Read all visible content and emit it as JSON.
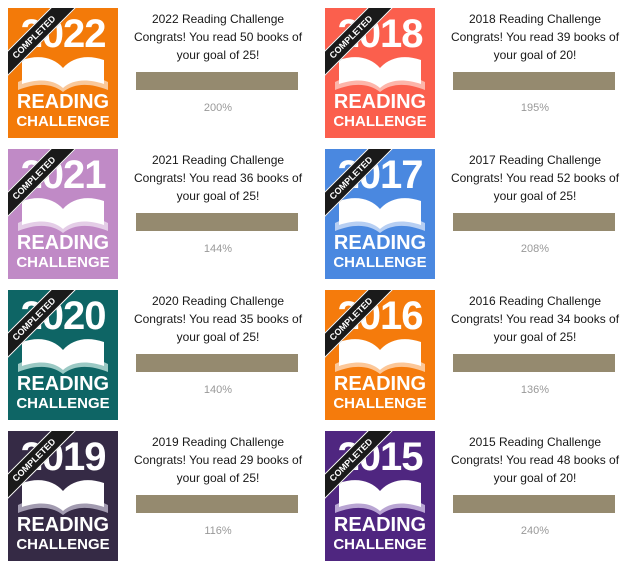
{
  "challenges": [
    {
      "year": "2022",
      "color": "#f37a09",
      "page_color": "#f9c89a",
      "title": "2022 Reading Challenge",
      "line1": "Congrats! You read 50 books of",
      "line2": "your goal of 25!",
      "percent_label": "200%",
      "progress": 1.0
    },
    {
      "year": "2018",
      "color": "#fb5f4d",
      "page_color": "#fdb5aa",
      "title": "2018 Reading Challenge",
      "line1": "Congrats! You read 39 books of",
      "line2": "your goal of 20!",
      "percent_label": "195%",
      "progress": 1.0
    },
    {
      "year": "2021",
      "color": "#c08ac6",
      "page_color": "#e4cde7",
      "title": "2021 Reading Challenge",
      "line1": "Congrats! You read 36 books of",
      "line2": "your goal of 25!",
      "percent_label": "144%",
      "progress": 1.0
    },
    {
      "year": "2017",
      "color": "#4a88e0",
      "page_color": "#b7cff3",
      "title": "2017 Reading Challenge",
      "line1": "Congrats! You read 52 books of",
      "line2": "your goal of 25!",
      "percent_label": "208%",
      "progress": 1.0
    },
    {
      "year": "2020",
      "color": "#0e6565",
      "page_color": "#9bc9c4",
      "title": "2020 Reading Challenge",
      "line1": "Congrats! You read 35 books of",
      "line2": "your goal of 25!",
      "percent_label": "140%",
      "progress": 1.0
    },
    {
      "year": "2016",
      "color": "#f57b0c",
      "page_color": "#fcc798",
      "title": "2016 Reading Challenge",
      "line1": "Congrats! You read 34 books of",
      "line2": "your goal of 25!",
      "percent_label": "136%",
      "progress": 1.0
    },
    {
      "year": "2019",
      "color": "#352a45",
      "page_color": "#a29bb0",
      "title": "2019 Reading Challenge",
      "line1": "Congrats! You read 29 books of",
      "line2": "your goal of 25!",
      "percent_label": "116%",
      "progress": 1.0
    },
    {
      "year": "2015",
      "color": "#4f2680",
      "page_color": "#b9a5d3",
      "title": "2015 Reading Challenge",
      "line1": "Congrats! You read 48 books of",
      "line2": "your goal of 20!",
      "percent_label": "240%",
      "progress": 1.0
    }
  ],
  "badge": {
    "word1": "READING",
    "word2": "CHALLENGE",
    "ribbon": "COMPLETED"
  },
  "colors": {
    "bar_fill": "#958a6f",
    "bar_track": "#e0dccf",
    "percent_text": "#999999"
  }
}
